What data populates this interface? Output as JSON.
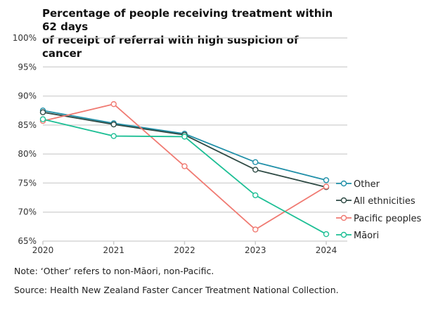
{
  "chart_data": {
    "type": "line",
    "title": "Percentage of people receiving treatment within 62 days of receipt of referral with high suspicion of cancer",
    "title_lines": [
      "Percentage of people receiving treatment within 62 days",
      "of receipt of referral with high suspicion of cancer"
    ],
    "x": [
      "2020",
      "2021",
      "2022",
      "2023",
      "2024"
    ],
    "ylim": [
      65,
      100
    ],
    "yticks": [
      65,
      70,
      75,
      80,
      85,
      90,
      95,
      100
    ],
    "ytick_format": "%",
    "grid": true,
    "legend_placement": "right (end labels)",
    "series": [
      {
        "name": "Other",
        "color": "#1f8fa8",
        "values": [
          87.5,
          85.3,
          83.5,
          78.6,
          75.5
        ]
      },
      {
        "name": "All ethnicities",
        "color": "#2e4a44",
        "values": [
          87.2,
          85.1,
          83.3,
          77.3,
          74.3
        ]
      },
      {
        "name": "Pacific peoples",
        "color": "#f07a72",
        "values": [
          85.7,
          88.6,
          77.9,
          67.0,
          74.4
        ]
      },
      {
        "name": "Māori",
        "color": "#1dbf95",
        "values": [
          86.0,
          83.1,
          83.0,
          72.9,
          66.2
        ]
      }
    ]
  },
  "notes": {
    "note": "Note: ‘Other’ refers to non-Māori, non-Pacific.",
    "source": "Source: Health New Zealand Faster Cancer Treatment National Collection."
  }
}
